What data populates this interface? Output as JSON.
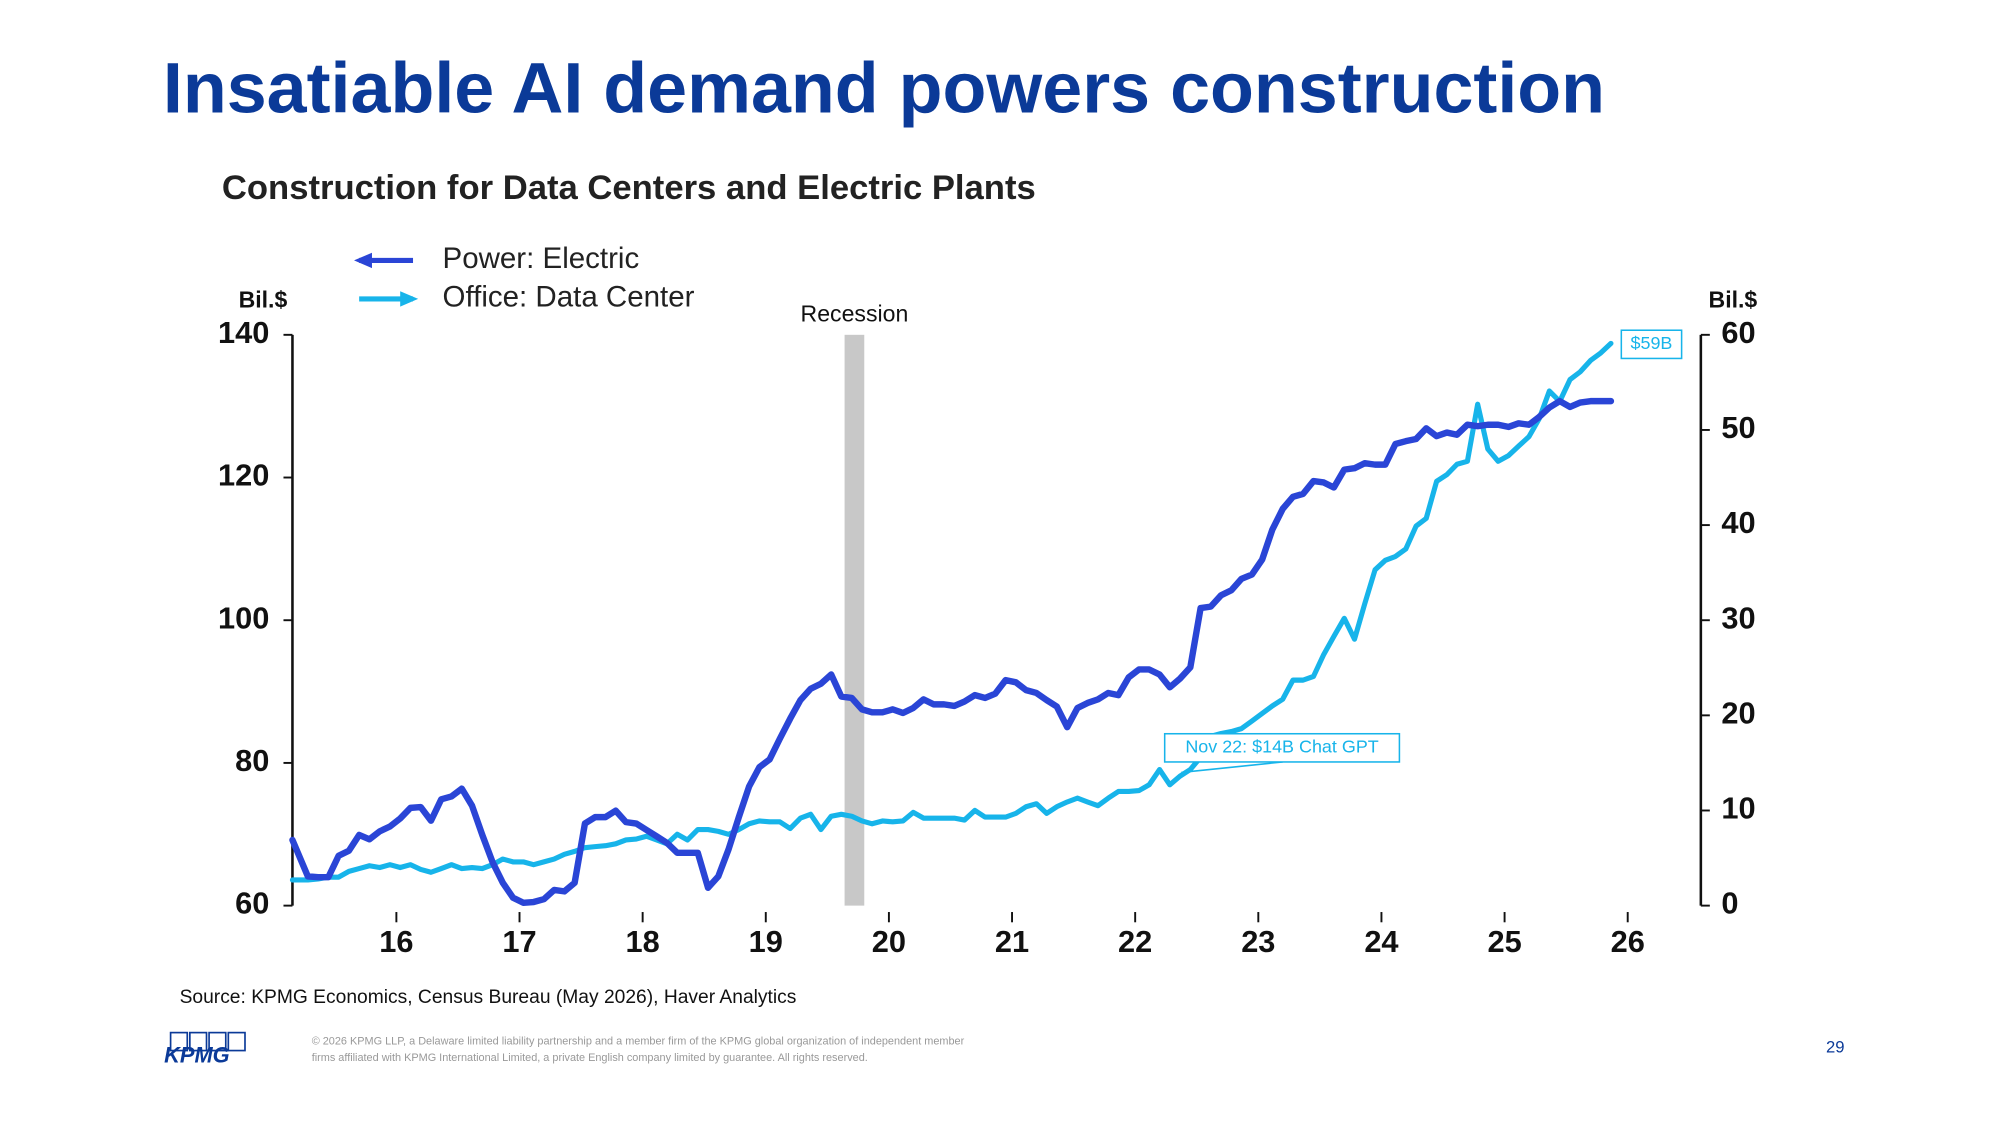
{
  "slide": {
    "title": "Insatiable AI demand powers construction",
    "source": "Source: KPMG Economics, Census Bureau (May 2026), Haver Analytics",
    "footer": {
      "logo": "KPMG",
      "copyright": [
        "© 2026 KPMG LLP, a Delaware limited liability partnership and a member firm of the KPMG global organization of independent member",
        "firms affiliated with KPMG International Limited, a private English company limited by guarantee. All rights reserved."
      ],
      "page_number": "29"
    }
  },
  "chart_data": {
    "type": "line",
    "title": "Construction for Data Centers and Electric Plants",
    "ylabel": "Bil.$",
    "y2label": "Bil.$",
    "legend": "top-left",
    "x": [
      2015.656,
      2015.781,
      2015.864,
      2015.948,
      2016.031,
      2016.114,
      2016.198,
      2016.281,
      2016.364,
      2016.448,
      2016.531,
      2016.614,
      2016.698,
      2016.781,
      2016.864,
      2016.948,
      2017.031,
      2017.114,
      2017.198,
      2017.281,
      2017.364,
      2017.448,
      2017.531,
      2017.614,
      2017.698,
      2017.781,
      2017.864,
      2017.948,
      2018.031,
      2018.114,
      2018.198,
      2018.281,
      2018.364,
      2018.448,
      2018.531,
      2018.614,
      2018.698,
      2018.781,
      2018.864,
      2018.948,
      2019.031,
      2019.114,
      2019.198,
      2019.281,
      2019.364,
      2019.448,
      2019.531,
      2019.614,
      2019.698,
      2019.781,
      2019.864,
      2019.948,
      2020.031,
      2020.114,
      2020.198,
      2020.281,
      2020.364,
      2020.448,
      2020.531,
      2020.614,
      2020.698,
      2020.781,
      2020.864,
      2020.948,
      2021.031,
      2021.114,
      2021.198,
      2021.281,
      2021.364,
      2021.448,
      2021.531,
      2021.614,
      2021.698,
      2021.781,
      2021.864,
      2021.948,
      2022.031,
      2022.114,
      2022.198,
      2022.281,
      2022.364,
      2022.448,
      2022.531,
      2022.614,
      2022.698,
      2022.781,
      2022.864,
      2022.948,
      2023.031,
      2023.114,
      2023.198,
      2023.281,
      2023.364,
      2023.448,
      2023.531,
      2023.614,
      2023.698,
      2023.781,
      2023.864,
      2023.948,
      2024.031,
      2024.114,
      2024.198,
      2024.281,
      2024.364,
      2024.448,
      2024.531,
      2024.614,
      2024.698,
      2024.781,
      2024.864,
      2024.948,
      2025.031,
      2025.114,
      2025.198,
      2025.281,
      2025.364,
      2025.448,
      2025.531,
      2025.614,
      2025.698,
      2025.781,
      2025.864,
      2025.948,
      2026.031,
      2026.114,
      2026.198,
      2026.281,
      2026.364
    ],
    "series": [
      {
        "name": "Office: Data Center",
        "color": "#17b4ea",
        "axis": "y2",
        "values": [
          2.7,
          2.7,
          2.8,
          3.0,
          3.0,
          3.6,
          3.9,
          4.2,
          4.0,
          4.3,
          4.0,
          4.3,
          3.8,
          3.5,
          3.9,
          4.3,
          3.9,
          4.0,
          3.9,
          4.3,
          4.9,
          4.6,
          4.6,
          4.3,
          4.6,
          4.9,
          5.4,
          5.7,
          6.1,
          6.2,
          6.3,
          6.5,
          6.9,
          7.0,
          7.3,
          6.9,
          6.5,
          7.5,
          6.9,
          8.0,
          8.0,
          7.8,
          7.5,
          8.0,
          8.6,
          8.9,
          8.8,
          8.8,
          8.1,
          9.2,
          9.6,
          8.0,
          9.4,
          9.6,
          9.4,
          8.9,
          8.6,
          8.9,
          8.8,
          8.9,
          9.8,
          9.2,
          9.2,
          9.2,
          9.2,
          9.0,
          10.0,
          9.3,
          9.3,
          9.3,
          9.7,
          10.4,
          10.7,
          9.7,
          10.4,
          10.9,
          11.3,
          10.9,
          10.5,
          11.3,
          12.0,
          12.0,
          12.1,
          12.7,
          14.3,
          12.7,
          13.6,
          14.3,
          15.6,
          17.8,
          18.1,
          18.3,
          18.6,
          19.4,
          20.2,
          21.0,
          21.7,
          23.7,
          23.7,
          24.1,
          26.4,
          28.3,
          30.2,
          28.0,
          31.7,
          35.3,
          36.3,
          36.7,
          37.5,
          39.9,
          40.7,
          44.6,
          45.3,
          46.4,
          46.7,
          52.7,
          48.0,
          46.7,
          47.3,
          48.3,
          49.3,
          51.2,
          54.1,
          53.0,
          55.3,
          56.1,
          57.3,
          58.1,
          59.1
        ]
      },
      {
        "name": "Power: Electric",
        "color": "#2a45d6",
        "axis": "y",
        "values": [
          69.2,
          64.1,
          64.0,
          64.0,
          67.0,
          67.7,
          69.9,
          69.3,
          70.4,
          71.1,
          72.2,
          73.7,
          73.8,
          71.9,
          74.9,
          75.3,
          76.4,
          74.0,
          69.9,
          66.1,
          63.2,
          61.1,
          60.4,
          60.5,
          60.9,
          62.2,
          62.0,
          63.2,
          71.5,
          72.4,
          72.4,
          73.3,
          71.7,
          71.5,
          70.6,
          69.7,
          68.8,
          67.4,
          67.4,
          67.4,
          62.5,
          64.1,
          67.9,
          72.4,
          76.7,
          79.4,
          80.5,
          83.4,
          86.2,
          88.8,
          90.4,
          91.1,
          92.4,
          89.3,
          89.1,
          87.5,
          87.1,
          87.1,
          87.5,
          87.0,
          87.7,
          88.9,
          88.2,
          88.2,
          88.0,
          88.6,
          89.5,
          89.1,
          89.7,
          91.6,
          91.3,
          90.2,
          89.8,
          88.8,
          87.9,
          85.0,
          87.7,
          88.4,
          88.9,
          89.8,
          89.5,
          92.0,
          93.1,
          93.1,
          92.4,
          90.6,
          91.8,
          93.4,
          101.7,
          101.9,
          103.5,
          104.2,
          105.8,
          106.4,
          108.5,
          112.7,
          115.6,
          117.3,
          117.7,
          119.5,
          119.3,
          118.6,
          121.1,
          121.3,
          122.0,
          121.8,
          121.8,
          124.7,
          125.1,
          125.4,
          126.9,
          125.8,
          126.3,
          126.0,
          127.4,
          127.2,
          127.4,
          127.4,
          127.1,
          127.6,
          127.4,
          128.5,
          129.8,
          130.7,
          129.9,
          130.5,
          130.7,
          130.7,
          130.7
        ]
      }
    ],
    "xlim": [
      2015.656,
      2027.094
    ],
    "xticks": [
      {
        "value": 2016.5,
        "label": "16"
      },
      {
        "value": 2017.5,
        "label": "17"
      },
      {
        "value": 2018.5,
        "label": "18"
      },
      {
        "value": 2019.5,
        "label": "19"
      },
      {
        "value": 2020.5,
        "label": "20"
      },
      {
        "value": 2021.5,
        "label": "21"
      },
      {
        "value": 2022.5,
        "label": "22"
      },
      {
        "value": 2023.5,
        "label": "23"
      },
      {
        "value": 2024.5,
        "label": "24"
      },
      {
        "value": 2025.5,
        "label": "25"
      },
      {
        "value": 2026.5,
        "label": "26"
      }
    ],
    "ylim": [
      60,
      140
    ],
    "yticks": [
      60,
      80,
      100,
      120,
      140
    ],
    "y2lim": [
      0,
      60
    ],
    "y2ticks": [
      0,
      10,
      20,
      30,
      40,
      50,
      60
    ],
    "recession": {
      "label": "Recession",
      "start": 2020.14,
      "end": 2020.3
    },
    "annotations": [
      {
        "text": "$59B",
        "y": 59,
        "axis": "y2"
      },
      {
        "text": "Nov 22: $14B Chat GPT",
        "x": 2022.875,
        "y": 14,
        "axis": "y2"
      }
    ]
  }
}
